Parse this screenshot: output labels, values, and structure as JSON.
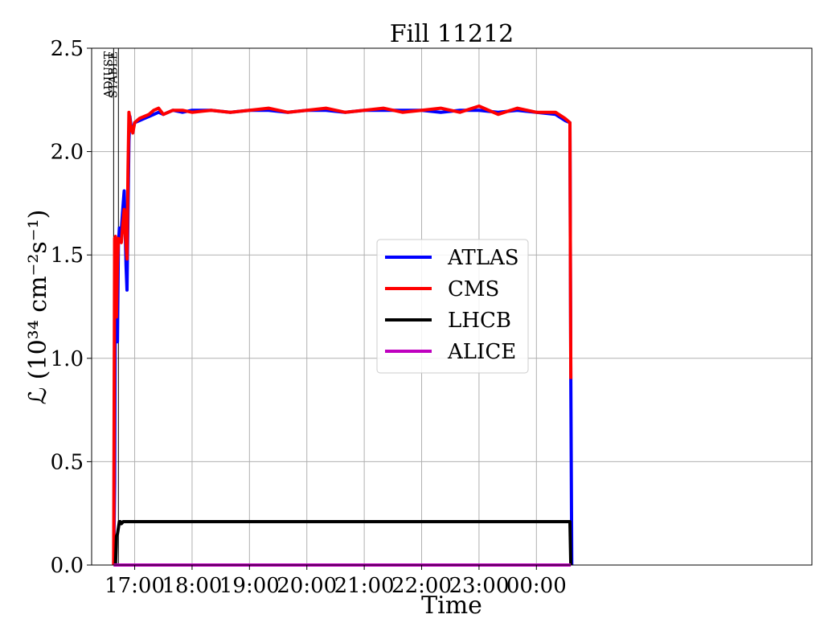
{
  "chart_data": {
    "type": "line",
    "title": "Fill 11212",
    "xlabel": "Time",
    "ylabel": "ℒ (10³⁴ cm⁻²s⁻¹)",
    "x_unit": "minutes since 17:00",
    "xlim": [
      -45,
      708
    ],
    "ylim": [
      0,
      2.5
    ],
    "yticks": [
      "0.0",
      "0.5",
      "1.0",
      "1.5",
      "2.0",
      "2.5"
    ],
    "xticks": [
      {
        "t": 0,
        "label": "17:00"
      },
      {
        "t": 60,
        "label": "18:00"
      },
      {
        "t": 120,
        "label": "19:00"
      },
      {
        "t": 180,
        "label": "20:00"
      },
      {
        "t": 240,
        "label": "21:00"
      },
      {
        "t": 300,
        "label": "22:00"
      },
      {
        "t": 360,
        "label": "23:00"
      },
      {
        "t": 420,
        "label": "00:00"
      }
    ],
    "grid": true,
    "legend_position": "center",
    "markers": [
      {
        "label": "ADJUST",
        "t": -22
      },
      {
        "label": "STABLE",
        "t": -17
      }
    ],
    "series": [
      {
        "name": "ATLAS",
        "color": "#0000ff",
        "x": [
          -22,
          -21,
          -20,
          -19,
          -18,
          -17,
          -16,
          -15,
          -14,
          -12,
          -11,
          -10,
          -9,
          -8,
          -7,
          -6,
          -5,
          -4,
          -3,
          -2,
          0,
          5,
          10,
          15,
          20,
          25,
          30,
          40,
          50,
          60,
          80,
          100,
          120,
          140,
          160,
          180,
          200,
          220,
          240,
          260,
          280,
          300,
          320,
          340,
          360,
          380,
          400,
          420,
          440,
          450,
          455,
          456,
          457
        ],
        "values": [
          0,
          0.4,
          1.58,
          1.35,
          1.08,
          1.55,
          1.63,
          1.61,
          1.62,
          1.75,
          1.81,
          1.65,
          1.45,
          1.33,
          1.7,
          2.05,
          2.17,
          2.13,
          2.11,
          2.1,
          2.14,
          2.15,
          2.16,
          2.17,
          2.18,
          2.19,
          2.18,
          2.2,
          2.19,
          2.2,
          2.2,
          2.19,
          2.2,
          2.2,
          2.19,
          2.2,
          2.2,
          2.19,
          2.2,
          2.2,
          2.2,
          2.2,
          2.19,
          2.2,
          2.2,
          2.19,
          2.2,
          2.19,
          2.18,
          2.15,
          2.14,
          0.9,
          0
        ]
      },
      {
        "name": "CMS",
        "color": "#ff0000",
        "x": [
          -22,
          -21,
          -20,
          -19,
          -18,
          -17,
          -16,
          -15,
          -14,
          -12,
          -11,
          -10,
          -9,
          -8,
          -7,
          -6,
          -5,
          -4,
          -3,
          -2,
          0,
          5,
          10,
          15,
          20,
          25,
          30,
          40,
          50,
          60,
          80,
          100,
          120,
          140,
          160,
          180,
          200,
          220,
          240,
          260,
          280,
          300,
          320,
          340,
          360,
          380,
          400,
          420,
          440,
          450,
          455,
          456
        ],
        "values": [
          0,
          1.58,
          1.59,
          1.2,
          1.45,
          1.58,
          1.57,
          1.57,
          1.56,
          1.67,
          1.72,
          1.62,
          1.55,
          1.48,
          1.9,
          2.19,
          2.16,
          2.1,
          2.12,
          2.09,
          2.14,
          2.16,
          2.17,
          2.18,
          2.2,
          2.21,
          2.18,
          2.2,
          2.2,
          2.19,
          2.2,
          2.19,
          2.2,
          2.21,
          2.19,
          2.2,
          2.21,
          2.19,
          2.2,
          2.21,
          2.19,
          2.2,
          2.21,
          2.19,
          2.22,
          2.18,
          2.21,
          2.19,
          2.19,
          2.16,
          2.14,
          0.9
        ]
      },
      {
        "name": "LHCB",
        "color": "#000000",
        "x": [
          -22,
          -20,
          -19,
          -18,
          -17,
          -16,
          -15,
          -14,
          -12,
          -10,
          -8,
          -5,
          0,
          20,
          40,
          60,
          100,
          140,
          180,
          220,
          260,
          300,
          340,
          380,
          420,
          455,
          456
        ],
        "values": [
          0,
          0,
          0.14,
          0.15,
          0.18,
          0.21,
          0.21,
          0.2,
          0.21,
          0.21,
          0.21,
          0.21,
          0.21,
          0.21,
          0.21,
          0.21,
          0.21,
          0.21,
          0.21,
          0.21,
          0.21,
          0.21,
          0.21,
          0.21,
          0.21,
          0.21,
          0
        ]
      },
      {
        "name": "ALICE",
        "color": "#bf00bf",
        "x": [
          -22,
          456
        ],
        "values": [
          0,
          0
        ]
      }
    ]
  }
}
